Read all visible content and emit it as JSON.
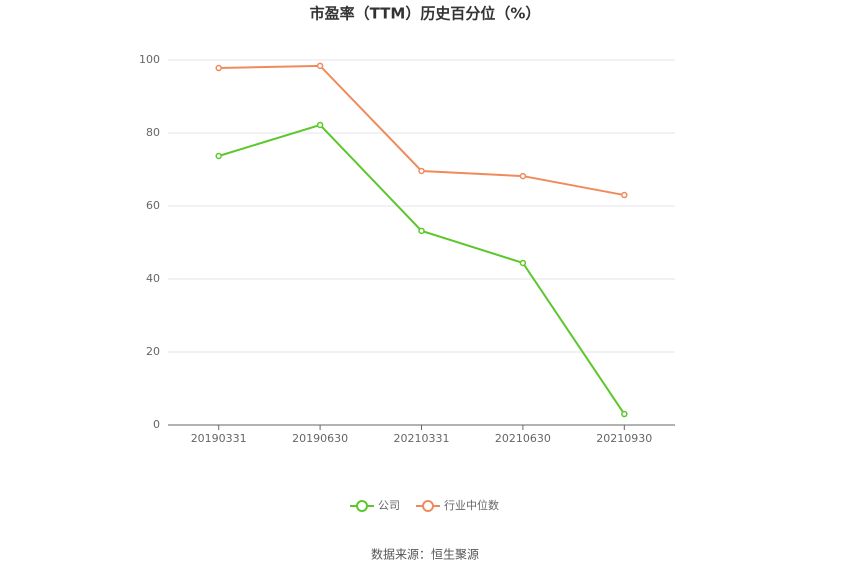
{
  "chart_data": {
    "type": "line",
    "title": "市盈率（TTM）历史百分位（%）",
    "categories": [
      "20190331",
      "20190630",
      "20210331",
      "20210630",
      "20210930"
    ],
    "series": [
      {
        "name": "公司",
        "color": "#5cc72b",
        "values": [
          73.7,
          82.2,
          53.2,
          44.4,
          3.0
        ]
      },
      {
        "name": "行业中位数",
        "color": "#f08a5d",
        "values": [
          97.8,
          98.4,
          69.6,
          68.2,
          63.0
        ]
      }
    ],
    "ylim": [
      0,
      100
    ],
    "yticks": [
      0,
      20,
      40,
      60,
      80,
      100
    ],
    "grid": true,
    "legend": "bottom",
    "source": "数据来源：恒生聚源"
  }
}
